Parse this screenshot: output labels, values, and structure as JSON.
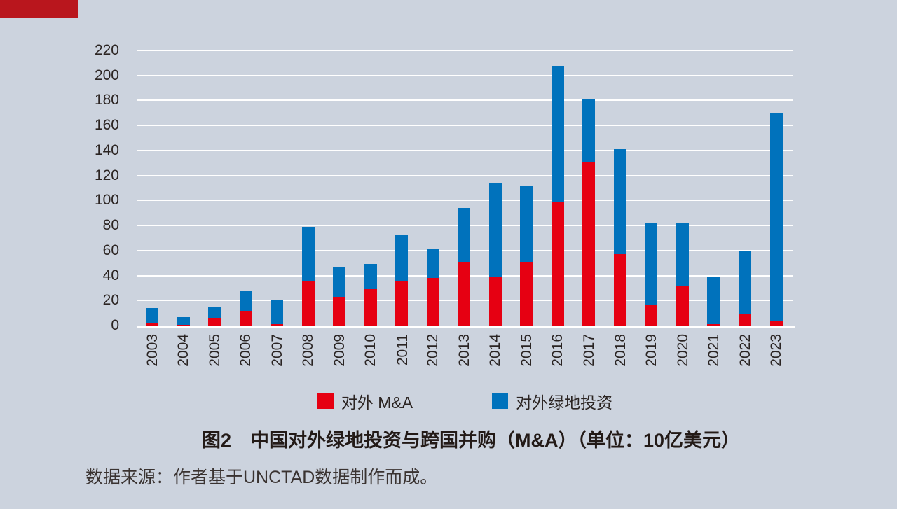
{
  "page": {
    "background_color": "#ccd3de",
    "corner_block_color": "#b9161d"
  },
  "chart_data": {
    "type": "bar",
    "subtype": "stacked-vertical",
    "title": "图2　中国对外绿地投资与跨国并购（M&A）（单位：10亿美元）",
    "source": "数据来源：作者基于UNCTAD数据制作而成。",
    "unit": "10亿美元",
    "grid": "horizontal-white-lines",
    "legend_position": "bottom-center",
    "categories": [
      "2003",
      "2004",
      "2005",
      "2006",
      "2007",
      "2008",
      "2009",
      "2010",
      "2011",
      "2012",
      "2013",
      "2014",
      "2015",
      "2016",
      "2017",
      "2018",
      "2019",
      "2020",
      "2021",
      "2022",
      "2023"
    ],
    "series": [
      {
        "name": "对外 M&A",
        "color": "#e60012",
        "values": [
          1.6,
          0.8,
          6,
          11.5,
          1.3,
          35.5,
          23,
          29,
          35.5,
          38,
          51,
          39,
          51,
          99,
          130.5,
          57,
          17,
          31.5,
          1,
          9,
          4
        ]
      },
      {
        "name": "对外绿地投资",
        "color": "#0072bc",
        "values": [
          12.4,
          5.7,
          9,
          16.5,
          19.2,
          43.5,
          23.5,
          20.5,
          36.5,
          23.5,
          43,
          75,
          61,
          108.5,
          51,
          84,
          65,
          50,
          37.5,
          51,
          166
        ]
      }
    ],
    "totals": [
      14,
      6.5,
      15,
      28,
      20.5,
      79,
      46.5,
      49.5,
      72,
      61.5,
      94,
      114,
      112,
      207.5,
      181.5,
      141,
      82,
      81.5,
      38.5,
      60,
      170
    ],
    "y_axis": {
      "min": 0,
      "max": 220,
      "step": 20,
      "tick_labels": [
        "0",
        "20",
        "40",
        "60",
        "80",
        "100",
        "120",
        "140",
        "160",
        "180",
        "200",
        "220"
      ]
    }
  }
}
